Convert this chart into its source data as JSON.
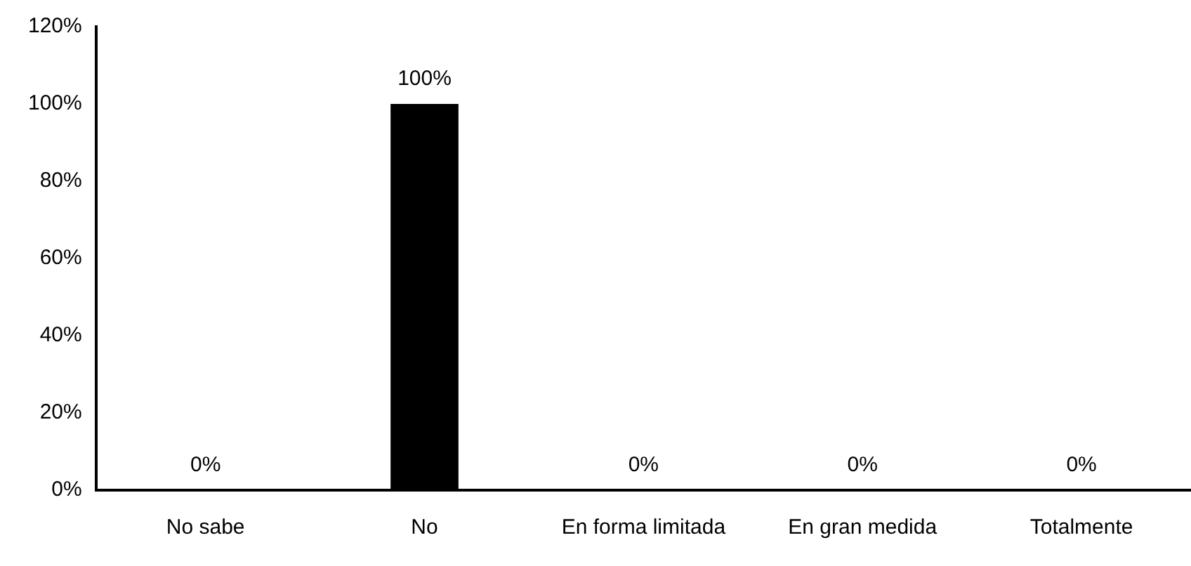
{
  "chart_data": {
    "type": "bar",
    "categories": [
      "No sabe",
      "No",
      "En forma limitada",
      "En gran medida",
      "Totalmente"
    ],
    "values": [
      0,
      100,
      0,
      0,
      0
    ],
    "value_labels": [
      "0%",
      "100%",
      "0%",
      "0%",
      "0%"
    ],
    "color": "#000000",
    "ylim": [
      0,
      120
    ],
    "yticks": [
      {
        "value": 0,
        "label": "0%"
      },
      {
        "value": 20,
        "label": "20%"
      },
      {
        "value": 40,
        "label": "40%"
      },
      {
        "value": 60,
        "label": "60%"
      },
      {
        "value": 80,
        "label": "80%"
      },
      {
        "value": 100,
        "label": "100%"
      },
      {
        "value": 120,
        "label": "120%"
      }
    ],
    "grid": false,
    "legend": false
  }
}
